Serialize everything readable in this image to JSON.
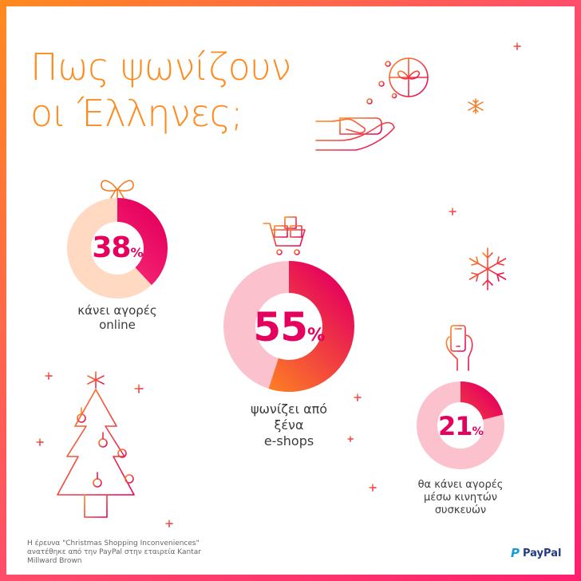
{
  "title": {
    "line1": "Πως ψωνίζουν",
    "line2": "οι Έλληνες;"
  },
  "stats": [
    {
      "id": "online",
      "value": "38",
      "unit": "%",
      "fraction": 0.38,
      "label_line1": "κάνει αγορές",
      "label_line2": "online"
    },
    {
      "id": "foreign",
      "value": "55",
      "unit": "%",
      "fraction": 0.55,
      "label_line1": "ψωνίζει από",
      "label_line2": "ξένα",
      "label_line3": "e-shops"
    },
    {
      "id": "mobile",
      "value": "21",
      "unit": "%",
      "fraction": 0.21,
      "label_line1": "θα κάνει αγορές",
      "label_line2": "μέσω κινητών",
      "label_line3": "συσκευών"
    }
  ],
  "note": "Η έρευνα \"Christmas Shopping Inconveniences\" ανατέθηκε από την PayPal στην εταιρεία Kantar Millward Brown",
  "brand": {
    "name": "PayPal",
    "mark": "P"
  },
  "colors": {
    "accent": "#e5005e",
    "orange": "#ff8a1e",
    "pink_light": "#fbc1cd",
    "peach": "#ffd9c2"
  },
  "icons": [
    "gift-hand-icon",
    "snowflake-icon",
    "shopping-cart-icon",
    "mobile-hand-icon",
    "christmas-tree-icon",
    "ornament-bow-icon",
    "sparkle-plus-icon"
  ]
}
